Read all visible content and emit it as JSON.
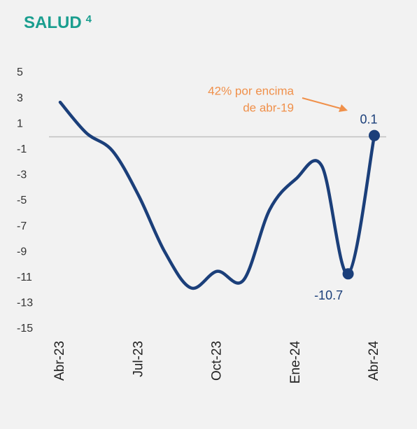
{
  "chart_data": {
    "type": "line",
    "title": "SALUD",
    "title_superscript": "4",
    "categories": [
      "Abr-23",
      null,
      null,
      "Jul-23",
      null,
      null,
      "Oct-23",
      null,
      null,
      "Ene-24",
      null,
      null,
      "Abr-24"
    ],
    "series": [
      {
        "name": "SALUD",
        "color": "#1b3f7a",
        "values": [
          2.7,
          0.3,
          -1.1,
          -4.6,
          -9.0,
          -11.8,
          -10.5,
          -11.2,
          -5.7,
          -3.3,
          -2.3,
          -10.7,
          0.1
        ],
        "value_labels": [
          null,
          null,
          null,
          null,
          null,
          null,
          null,
          null,
          null,
          null,
          null,
          "-10.7",
          "0.1"
        ]
      }
    ],
    "ylim": [
      -15,
      5
    ],
    "yticks": [
      5,
      3,
      1,
      -1,
      -3,
      -5,
      -7,
      -9,
      -11,
      -13,
      -15
    ],
    "zero_line": true,
    "annotation": {
      "lines": [
        "42% por encima",
        "de abr-19"
      ],
      "color": "#f0904a"
    }
  }
}
